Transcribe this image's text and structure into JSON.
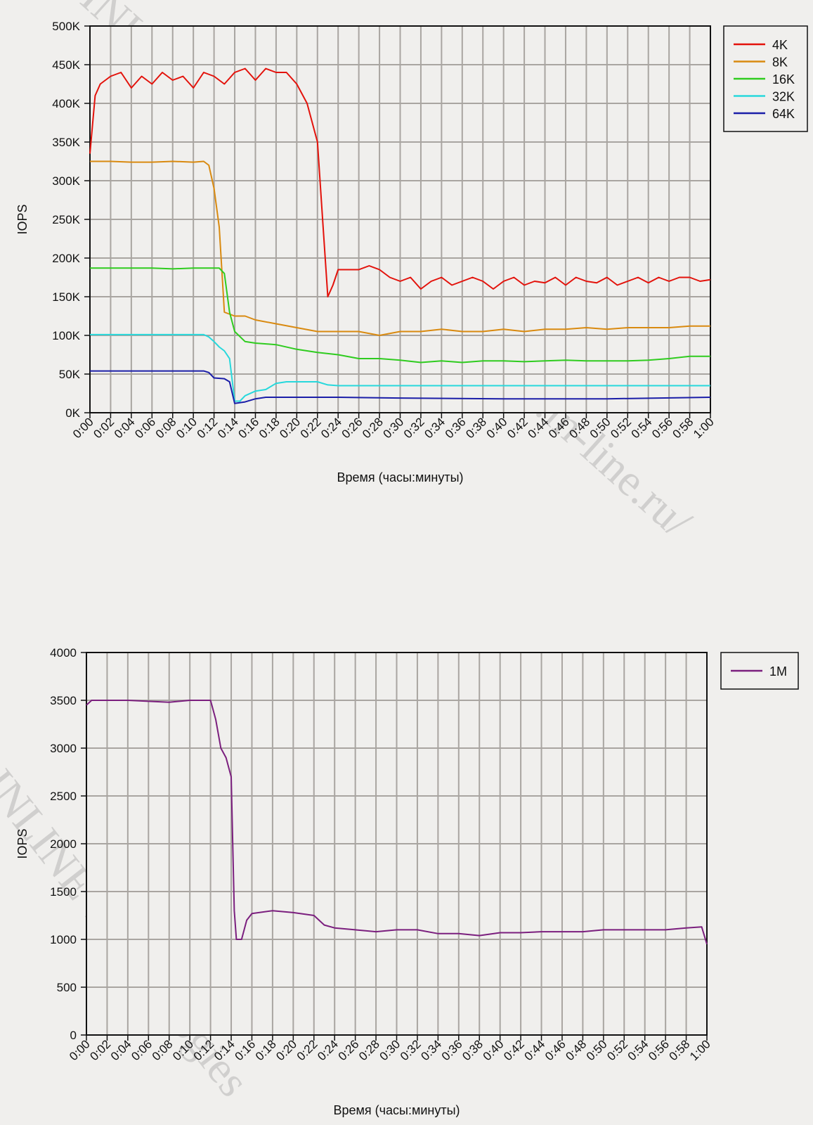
{
  "watermark": {
    "text_1": "INLINE Technologies   http://www.in-line.ru/",
    "text_2": "INLINE Technologies"
  },
  "chart_data": [
    {
      "type": "line",
      "xlabel": "Время (часы:минуты)",
      "ylabel": "IOPS",
      "xlim": [
        0,
        60
      ],
      "ylim": [
        0,
        500000
      ],
      "x_tick_labels": [
        "0:00",
        "0:02",
        "0:04",
        "0:06",
        "0:08",
        "0:10",
        "0:12",
        "0:14",
        "0:16",
        "0:18",
        "0:20",
        "0:22",
        "0:24",
        "0:26",
        "0:28",
        "0:30",
        "0:32",
        "0:34",
        "0:36",
        "0:38",
        "0:40",
        "0:42",
        "0:44",
        "0:46",
        "0:48",
        "0:50",
        "0:52",
        "0:54",
        "0:56",
        "0:58",
        "1:00"
      ],
      "y_tick_labels": [
        "0K",
        "50K",
        "100K",
        "150K",
        "200K",
        "250K",
        "300K",
        "350K",
        "400K",
        "450K",
        "500K"
      ],
      "x_unit": "minutes",
      "grid": true,
      "legend": "right",
      "series": [
        {
          "name": "4K",
          "color": "#e3120b",
          "x": [
            0,
            0.5,
            1,
            2,
            3,
            4,
            5,
            6,
            7,
            8,
            9,
            10,
            11,
            12,
            13,
            14,
            15,
            16,
            17,
            18,
            19,
            20,
            21,
            22,
            22.5,
            23,
            23.5,
            24,
            25,
            26,
            27,
            28,
            29,
            30,
            31,
            32,
            33,
            34,
            35,
            36,
            37,
            38,
            39,
            40,
            41,
            42,
            43,
            44,
            45,
            46,
            47,
            48,
            49,
            50,
            51,
            52,
            53,
            54,
            55,
            56,
            57,
            58,
            59,
            60
          ],
          "y": [
            335000,
            410000,
            425000,
            435000,
            440000,
            420000,
            435000,
            425000,
            440000,
            430000,
            435000,
            420000,
            440000,
            435000,
            425000,
            440000,
            445000,
            430000,
            445000,
            440000,
            440000,
            425000,
            400000,
            350000,
            250000,
            150000,
            165000,
            185000,
            185000,
            185000,
            190000,
            185000,
            175000,
            170000,
            175000,
            160000,
            170000,
            175000,
            165000,
            170000,
            175000,
            170000,
            160000,
            170000,
            175000,
            165000,
            170000,
            168000,
            175000,
            165000,
            175000,
            170000,
            168000,
            175000,
            165000,
            170000,
            175000,
            168000,
            175000,
            170000,
            175000,
            175000,
            170000,
            172000
          ]
        },
        {
          "name": "8K",
          "color": "#d98a10",
          "x": [
            0,
            2,
            4,
            6,
            8,
            10,
            11,
            11.5,
            12,
            12.5,
            13,
            14,
            15,
            16,
            18,
            20,
            22,
            24,
            26,
            28,
            30,
            32,
            34,
            36,
            38,
            40,
            42,
            44,
            46,
            48,
            50,
            52,
            54,
            56,
            58,
            60
          ],
          "y": [
            325000,
            325000,
            324000,
            324000,
            325000,
            324000,
            325000,
            320000,
            290000,
            240000,
            130000,
            125000,
            125000,
            120000,
            115000,
            110000,
            105000,
            105000,
            105000,
            100000,
            105000,
            105000,
            108000,
            105000,
            105000,
            108000,
            105000,
            108000,
            108000,
            110000,
            108000,
            110000,
            110000,
            110000,
            112000,
            112000
          ]
        },
        {
          "name": "16K",
          "color": "#2fcc1f",
          "x": [
            0,
            2,
            4,
            6,
            8,
            10,
            12,
            12.5,
            13,
            13.5,
            14,
            15,
            16,
            18,
            20,
            22,
            24,
            26,
            28,
            30,
            32,
            34,
            36,
            38,
            40,
            42,
            44,
            46,
            48,
            50,
            52,
            54,
            56,
            58,
            60
          ],
          "y": [
            187000,
            187000,
            187000,
            187000,
            186000,
            187000,
            187000,
            187000,
            180000,
            130000,
            105000,
            92000,
            90000,
            88000,
            82000,
            78000,
            75000,
            70000,
            70000,
            68000,
            65000,
            67000,
            65000,
            67000,
            67000,
            66000,
            67000,
            68000,
            67000,
            67000,
            67000,
            68000,
            70000,
            73000,
            73000
          ]
        },
        {
          "name": "32K",
          "color": "#27d8dc",
          "x": [
            0,
            2,
            4,
            6,
            8,
            10,
            11,
            11.5,
            12,
            12.5,
            13,
            13.5,
            14,
            14.5,
            15,
            16,
            17,
            18,
            19,
            20,
            22,
            23,
            24,
            26,
            28,
            30,
            40,
            50,
            60
          ],
          "y": [
            101000,
            101000,
            101000,
            101000,
            101000,
            101000,
            101000,
            98000,
            92000,
            85000,
            80000,
            70000,
            15000,
            15000,
            22000,
            28000,
            30000,
            38000,
            40000,
            40000,
            40000,
            36000,
            35000,
            35000,
            35000,
            35000,
            35000,
            35000,
            35000
          ]
        },
        {
          "name": "64K",
          "color": "#1b1ea8",
          "x": [
            0,
            2,
            4,
            6,
            8,
            10,
            11,
            11.5,
            12,
            13,
            13.5,
            14,
            15,
            16,
            17,
            18,
            20,
            24,
            30,
            40,
            50,
            60
          ],
          "y": [
            54000,
            54000,
            54000,
            54000,
            54000,
            54000,
            54000,
            52000,
            45000,
            44000,
            40000,
            12000,
            14000,
            18000,
            20000,
            20000,
            20000,
            20000,
            19000,
            18000,
            18000,
            20000
          ]
        }
      ]
    },
    {
      "type": "line",
      "xlabel": "Время (часы:минуты)",
      "ylabel": "IOPS",
      "xlim": [
        0,
        60
      ],
      "ylim": [
        0,
        4000
      ],
      "x_tick_labels": [
        "0:00",
        "0:02",
        "0:04",
        "0:06",
        "0:08",
        "0:10",
        "0:12",
        "0:14",
        "0:16",
        "0:18",
        "0:20",
        "0:22",
        "0:24",
        "0:26",
        "0:28",
        "0:30",
        "0:32",
        "0:34",
        "0:36",
        "0:38",
        "0:40",
        "0:42",
        "0:44",
        "0:46",
        "0:48",
        "0:50",
        "0:52",
        "0:54",
        "0:56",
        "0:58",
        "1:00"
      ],
      "y_tick_labels": [
        "0",
        "500",
        "1000",
        "1500",
        "2000",
        "2500",
        "3000",
        "3500",
        "4000"
      ],
      "x_unit": "minutes",
      "grid": true,
      "legend": "top-right",
      "series": [
        {
          "name": "1M",
          "color": "#7b1f7e",
          "x": [
            0,
            0.5,
            2,
            4,
            6,
            8,
            10,
            12,
            12.5,
            13,
            13.5,
            14,
            14.3,
            14.5,
            15,
            15.5,
            16,
            18,
            20,
            22,
            23,
            24,
            26,
            28,
            30,
            32,
            34,
            36,
            38,
            40,
            42,
            44,
            46,
            48,
            50,
            52,
            54,
            56,
            58,
            59.5,
            60
          ],
          "y": [
            3450,
            3500,
            3500,
            3500,
            3490,
            3480,
            3500,
            3500,
            3300,
            3000,
            2900,
            2700,
            1300,
            1000,
            1000,
            1200,
            1270,
            1300,
            1280,
            1250,
            1150,
            1120,
            1100,
            1080,
            1100,
            1100,
            1060,
            1060,
            1040,
            1070,
            1070,
            1080,
            1080,
            1080,
            1100,
            1100,
            1100,
            1100,
            1120,
            1130,
            950
          ]
        }
      ]
    }
  ]
}
